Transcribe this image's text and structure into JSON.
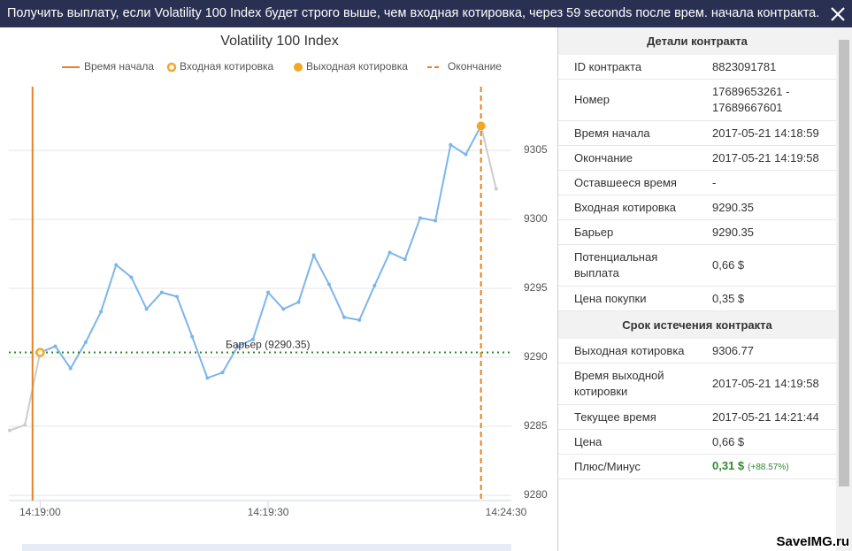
{
  "header": {
    "title": "Получить выплату, если Volatility 100 Index будет строго выше, чем входная котировка, через 59 seconds после врем. начала контракта."
  },
  "chart_data": {
    "type": "line",
    "title": "Volatility 100 Index",
    "x": [
      "14:18:56",
      "14:18:58",
      "14:19:00",
      "14:19:02",
      "14:19:04",
      "14:19:06",
      "14:19:08",
      "14:19:10",
      "14:19:12",
      "14:19:14",
      "14:19:16",
      "14:19:18",
      "14:19:20",
      "14:19:22",
      "14:19:24",
      "14:19:26",
      "14:19:28",
      "14:19:30",
      "14:19:32",
      "14:19:34",
      "14:19:36",
      "14:19:38",
      "14:19:40",
      "14:19:42",
      "14:19:44",
      "14:19:46",
      "14:19:48",
      "14:19:50",
      "14:19:52",
      "14:19:54",
      "14:19:56",
      "14:19:58",
      "14:20:00"
    ],
    "series": [
      {
        "color": "#7cb5ec",
        "outside_color": "#cccccc",
        "values": [
          9284.7,
          9285.1,
          9290.35,
          9290.8,
          9289.2,
          9291.1,
          9293.3,
          9296.7,
          9295.8,
          9293.5,
          9294.7,
          9294.4,
          9291.5,
          9288.5,
          9288.9,
          9290.8,
          9291.3,
          9294.7,
          9293.5,
          9294.0,
          9297.4,
          9295.3,
          9292.9,
          9292.7,
          9295.2,
          9297.6,
          9297.1,
          9300.1,
          9299.9,
          9305.4,
          9304.7,
          9306.77,
          9302.2
        ]
      }
    ],
    "xlim": [
      "14:18:56",
      "14:20:02"
    ],
    "xticks": [
      "14:19:00",
      "14:19:30"
    ],
    "x_end_label": "14:24:30",
    "ylim": [
      9280,
      9310
    ],
    "yticks": [
      9280,
      9285,
      9290,
      9295,
      9300,
      9305
    ],
    "grid": true,
    "start": {
      "name": "Время начала",
      "x": "14:18:59",
      "color": "#e98024"
    },
    "entry": {
      "name": "Входная котировка",
      "x": "14:19:00",
      "value": 9290.35,
      "color": "#f5a623"
    },
    "exit": {
      "name": "Выходная котировка",
      "x": "14:19:58",
      "value": 9306.77,
      "color": "#f5a623"
    },
    "end": {
      "name": "Окончание",
      "x": "14:19:58",
      "color": "#e98024"
    },
    "barrier": {
      "label": "Барьер (9290.35)",
      "value": 9290.35,
      "color": "#2e8b2e"
    }
  },
  "table": {
    "section1": "Детали контракта",
    "rows1": [
      [
        "ID контракта",
        "8823091781"
      ],
      [
        "Номер",
        "17689653261 - 17689667601"
      ],
      [
        "Время начала",
        "2017-05-21 14:18:59"
      ],
      [
        "Окончание",
        "2017-05-21 14:19:58"
      ],
      [
        "Оставшееся время",
        "-"
      ],
      [
        "Входная котировка",
        "9290.35"
      ],
      [
        "Барьер",
        "9290.35"
      ],
      [
        "Потенциальная выплата",
        "0,66 $"
      ],
      [
        "Цена покупки",
        "0,35 $"
      ]
    ],
    "section2": "Срок истечения контракта",
    "rows2": [
      [
        "Выходная котировка",
        "9306.77"
      ],
      [
        "Время выходной котировки",
        "2017-05-21 14:19:58"
      ],
      [
        "Текущее время",
        "2017-05-21 14:21:44"
      ],
      [
        "Цена",
        "0,66 $"
      ]
    ],
    "profit": {
      "label": "Плюс/Минус",
      "value": "0,31 $",
      "percent": "(+88.57%)"
    }
  },
  "watermark": "SaveIMG.ru"
}
